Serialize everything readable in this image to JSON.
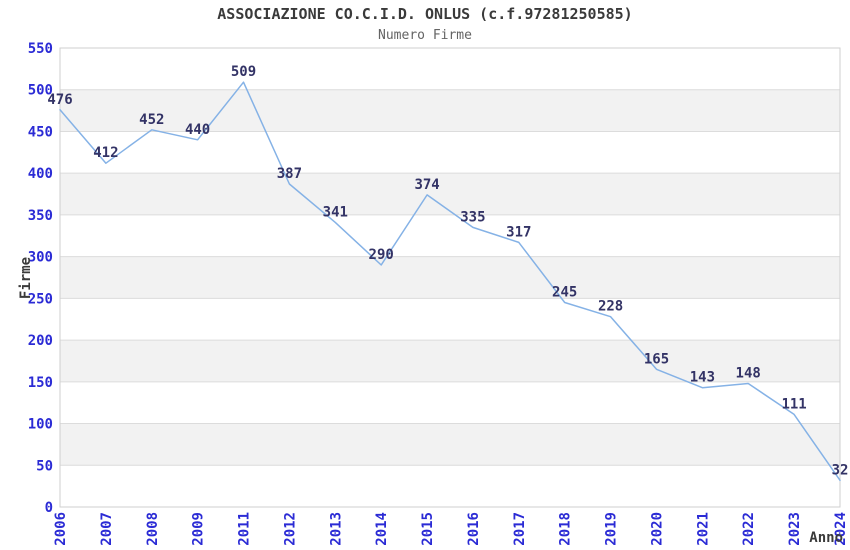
{
  "header": {
    "title": "ASSOCIAZIONE CO.C.I.D. ONLUS (c.f.97281250585)",
    "subtitle": "Numero Firme"
  },
  "chart_data": {
    "type": "line",
    "title": "ASSOCIAZIONE CO.C.I.D. ONLUS (c.f.97281250585)",
    "subtitle": "Numero Firme",
    "xlabel": "Anno",
    "ylabel": "Firme",
    "categories": [
      "2006",
      "2007",
      "2008",
      "2009",
      "2011",
      "2012",
      "2013",
      "2014",
      "2015",
      "2016",
      "2017",
      "2018",
      "2019",
      "2020",
      "2021",
      "2022",
      "2023",
      "2024"
    ],
    "values": [
      476,
      412,
      452,
      440,
      509,
      387,
      341,
      290,
      374,
      335,
      317,
      245,
      228,
      165,
      143,
      148,
      111,
      32
    ],
    "ylim": [
      0,
      550
    ],
    "ytick_step": 50,
    "grid": true,
    "legend_position": "none",
    "colors": {
      "line": "#85b2e6",
      "tick_label": "#2b2bd5",
      "data_label": "#333366",
      "band": "#f2f2f2",
      "gridline": "#dcdcdc",
      "border": "#cfcfcf",
      "axis_title": "#3a3a3a"
    }
  }
}
